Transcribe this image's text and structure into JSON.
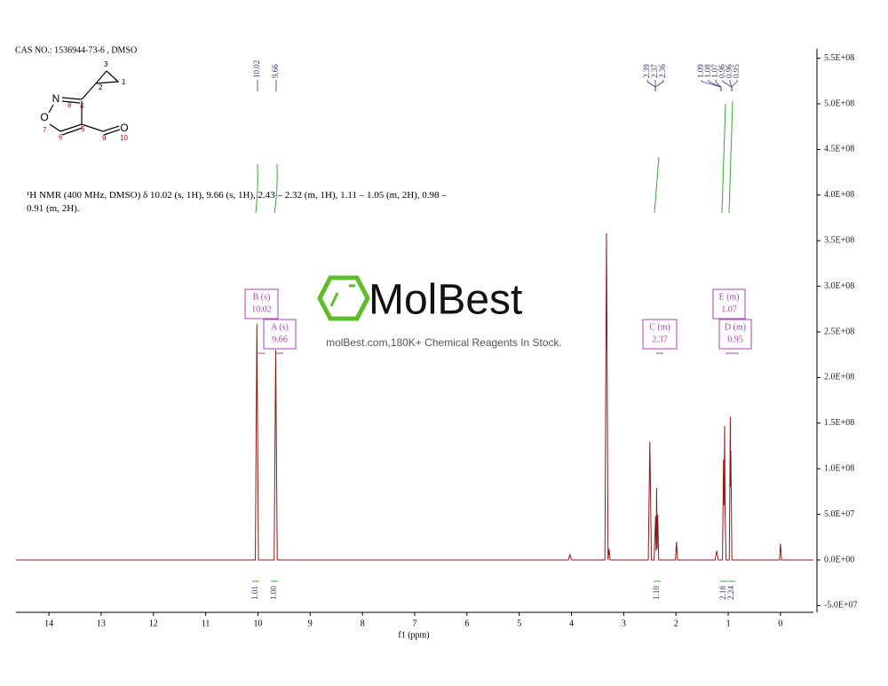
{
  "header": {
    "cas": "CAS NO.: 1536944-73-6 , DMSO"
  },
  "molecule": {
    "atoms": [
      "N",
      "O",
      "O"
    ],
    "numbers": [
      "1",
      "2",
      "3",
      "4",
      "5",
      "6",
      "7",
      "8",
      "9",
      "10"
    ]
  },
  "nmr_text": "¹H NMR (400 MHz, DMSO) δ 10.02 (s, 1H), 9.66 (s, 1H), 2.43 – 2.32 (m, 1H), 1.11 – 1.05 (m, 2H), 0.98 – 0.91 (m, 2H).",
  "watermark": {
    "brand": "MolBest",
    "tagline": "molBest.com,180K+ Chemical Reagents In Stock."
  },
  "peak_labels": [
    "10.02",
    "9.66",
    "2.39",
    "2.37",
    "2.36",
    "1.09",
    "1.08",
    "1.07",
    "0.96",
    "0.96",
    "0.95"
  ],
  "multiplets": [
    {
      "label": "B (s)",
      "shift": "10.02"
    },
    {
      "label": "A (s)",
      "shift": "9.66"
    },
    {
      "label": "C (m)",
      "shift": "2.37"
    },
    {
      "label": "E (m)",
      "shift": "1.07"
    },
    {
      "label": "D (m)",
      "shift": "0.95"
    }
  ],
  "integrals": [
    "1.01",
    "1.00",
    "1.10",
    "2.18",
    "2.24"
  ],
  "chart_data": {
    "type": "line",
    "xlabel": "f1 (ppm)",
    "xlim": [
      14.63,
      -0.63
    ],
    "xticks": [
      14,
      13,
      12,
      11,
      10,
      9,
      8,
      7,
      6,
      5,
      4,
      3,
      2,
      1,
      0
    ],
    "ylim": [
      -50000000,
      560000000
    ],
    "yticks": [
      {
        "value": -50000000,
        "label": "-5.0E+07"
      },
      {
        "value": 0,
        "label": "0.0E+00"
      },
      {
        "value": 50000000,
        "label": "5.0E+07"
      },
      {
        "value": 100000000,
        "label": "1.0E+08"
      },
      {
        "value": 150000000,
        "label": "1.5E+08"
      },
      {
        "value": 200000000,
        "label": "2.0E+08"
      },
      {
        "value": 250000000,
        "label": "2.5E+08"
      },
      {
        "value": 300000000,
        "label": "3.0E+08"
      },
      {
        "value": 350000000,
        "label": "3.5E+08"
      },
      {
        "value": 400000000,
        "label": "4.0E+08"
      },
      {
        "value": 450000000,
        "label": "4.5E+08"
      },
      {
        "value": 500000000,
        "label": "5.0E+08"
      },
      {
        "value": 550000000,
        "label": "5.5E+08"
      }
    ],
    "series": [
      {
        "name": "spectrum",
        "color": "#8b1a1a",
        "x": [
          14.63,
          10.05,
          10.02,
          9.99,
          9.69,
          9.66,
          9.63,
          4.06,
          4.03,
          4.0,
          3.36,
          3.33,
          3.3,
          3.28,
          3.26,
          2.53,
          2.5,
          2.47,
          2.42,
          2.39,
          2.38,
          2.37,
          2.36,
          2.35,
          2.33,
          2.01,
          1.99,
          1.97,
          1.25,
          1.22,
          1.19,
          1.11,
          1.09,
          1.08,
          1.07,
          1.06,
          1.04,
          0.98,
          0.96,
          0.955,
          0.95,
          0.93,
          0.02,
          0.0,
          -0.02,
          -0.63
        ],
        "values": [
          0,
          0,
          259000000,
          0,
          0,
          230000000,
          0,
          0,
          6000000,
          0,
          0,
          358000000,
          0,
          12000000,
          0,
          0,
          130000000,
          0,
          0,
          48000000,
          10000000,
          79000000,
          12000000,
          50000000,
          0,
          0,
          20000000,
          0,
          0,
          10000000,
          0,
          0,
          110000000,
          60000000,
          147000000,
          50000000,
          0,
          0,
          157000000,
          80000000,
          120000000,
          0,
          0,
          18000000,
          0,
          0
        ]
      }
    ]
  }
}
